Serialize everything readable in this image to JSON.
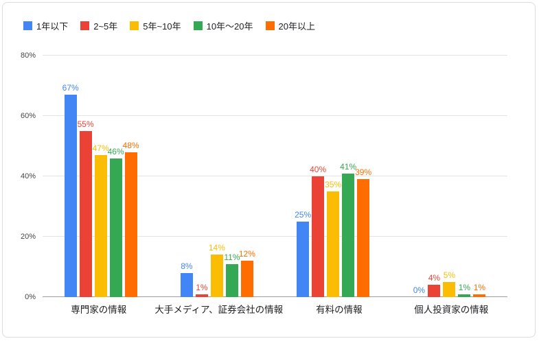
{
  "legend": {
    "position": "top-left",
    "items": [
      {
        "label": "1年以下",
        "color": "#4285F4"
      },
      {
        "label": "2~5年",
        "color": "#EA4335"
      },
      {
        "label": "5年~10年",
        "color": "#FBBC04"
      },
      {
        "label": "10年〜20年",
        "color": "#34A853"
      },
      {
        "label": "20年以上",
        "color": "#FF6D01"
      }
    ]
  },
  "chart_data": {
    "type": "bar",
    "title": "",
    "xlabel": "",
    "ylabel": "",
    "categories": [
      "専門家の情報",
      "大手メディア、証券会社の情報",
      "有料の情報",
      "個人投資家の情報"
    ],
    "series": [
      {
        "name": "1年以下",
        "color": "#4285F4",
        "values": [
          67,
          8,
          25,
          0
        ]
      },
      {
        "name": "2~5年",
        "color": "#EA4335",
        "values": [
          55,
          1,
          40,
          4
        ]
      },
      {
        "name": "5年~10年",
        "color": "#FBBC04",
        "values": [
          47,
          14,
          35,
          5
        ]
      },
      {
        "name": "10年〜20年",
        "color": "#34A853",
        "values": [
          46,
          11,
          41,
          1
        ]
      },
      {
        "name": "20年以上",
        "color": "#FF6D01",
        "values": [
          48,
          12,
          39,
          1
        ]
      }
    ],
    "value_suffix": "%",
    "ylim": [
      0,
      80
    ],
    "y_ticks": [
      0,
      20,
      40,
      60,
      80
    ],
    "y_tick_suffix": "%",
    "grid": true,
    "legend_position": "top-left"
  }
}
